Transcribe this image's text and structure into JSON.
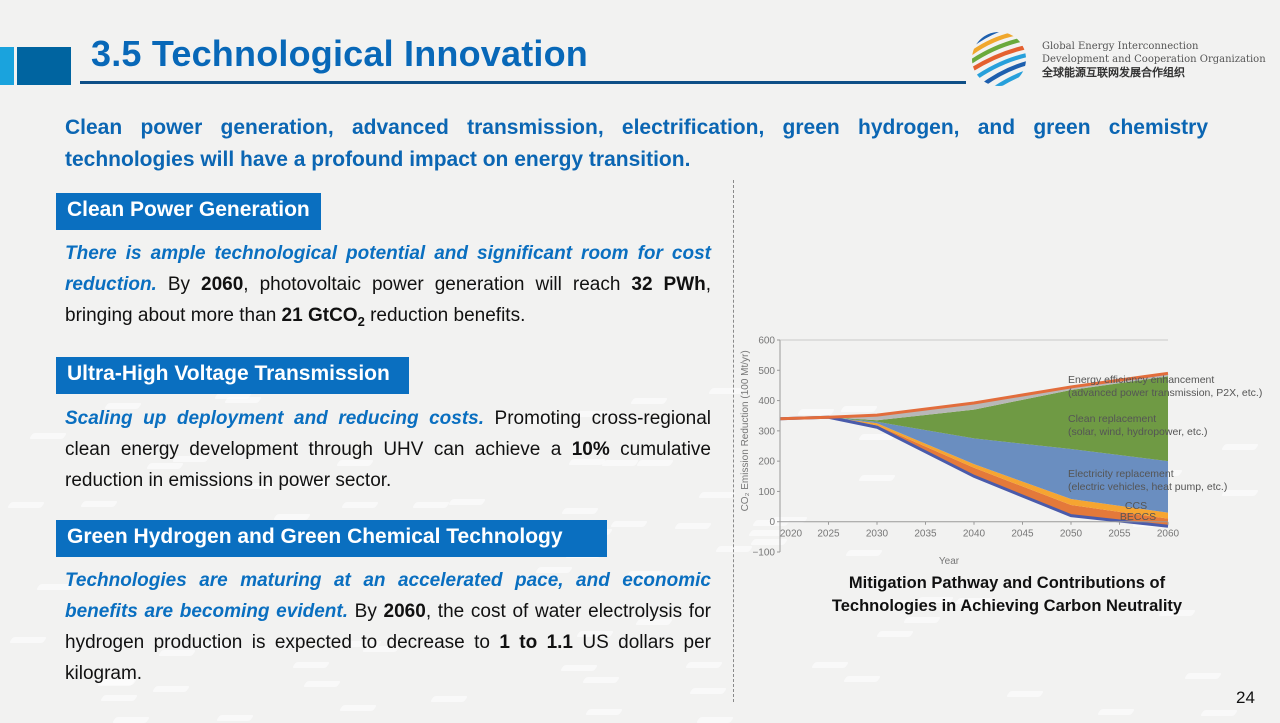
{
  "header": {
    "title": "3.5 Technological Innovation",
    "org_line1": "Global Energy Interconnection",
    "org_line2": "Development and Cooperation Organization",
    "org_line3": "全球能源互联网发展合作组织",
    "logo_icon": "globe-logo-icon"
  },
  "lead_text": "Clean power generation, advanced transmission, electrification, green hydrogen, and green chemistry technologies will have a profound impact on energy transition.",
  "sections": [
    {
      "heading": "Clean Power Generation",
      "highlight": "There is ample technological potential and significant room for cost reduction.",
      "t1": " By ",
      "b1": "2060",
      "t2": ", photovoltaic power generation will reach ",
      "b2": "32 PWh",
      "t3": ", bringing about more than ",
      "b3": "21 GtCO",
      "b3_sub": "2",
      "t4": " reduction benefits."
    },
    {
      "heading": "Ultra-High Voltage Transmission",
      "highlight": "Scaling up deployment and reducing costs.",
      "t1": " Promoting cross-regional clean energy development through UHV can achieve a ",
      "b1": "10%",
      "t2": " cumulative reduction in emissions in power sector."
    },
    {
      "heading": "Green Hydrogen and Green Chemical Technology",
      "highlight": "Technologies are maturing at an accelerated pace, and economic benefits are becoming evident.",
      "t1": " By ",
      "b1": "2060",
      "t2": ", the cost of water electrolysis for hydrogen production is expected to decrease to ",
      "b2": "1 to 1.1",
      "t3": " US dollars per kilogram."
    }
  ],
  "caption_line1": "Mitigation Pathway and  Contributions of",
  "caption_line2": "Technologies in Achieving Carbon Neutrality",
  "page_number": "24",
  "chart_data": {
    "type": "area",
    "title": "Mitigation Pathway and Contributions of Technologies in Achieving Carbon Neutrality",
    "xlabel": "Year",
    "ylabel": "CO₂ Emission Reduction (100 Mt/yr)",
    "x": [
      2020,
      2025,
      2030,
      2040,
      2050,
      2060
    ],
    "xticks": [
      2020,
      2025,
      2030,
      2035,
      2040,
      2045,
      2050,
      2055,
      2060
    ],
    "yticks": [
      -100,
      0,
      100,
      200,
      300,
      400,
      500,
      600
    ],
    "ylim": [
      -100,
      600
    ],
    "xlim": [
      2020,
      2060
    ],
    "residual_emissions": [
      340,
      345,
      312,
      150,
      20,
      -15
    ],
    "series": [
      {
        "name": "BECCS",
        "label": "BECCS",
        "color": "#e4793a",
        "top": [
          340,
          345,
          318,
          178,
          55,
          10
        ]
      },
      {
        "name": "CCS",
        "label": "CCS",
        "color": "#f6a531",
        "top": [
          340,
          345,
          325,
          190,
          75,
          30
        ]
      },
      {
        "name": "Electricity replacement",
        "label": "Electricity replacement",
        "sublabel": "(electric vehicles, heat pump, etc.)",
        "color": "#6a8ec0",
        "top": [
          340,
          345,
          330,
          275,
          240,
          200
        ]
      },
      {
        "name": "Clean replacement",
        "label": "Clean replacement",
        "sublabel": "(solar, wind, hydropower, etc.)",
        "color": "#6f9a44",
        "top": [
          340,
          345,
          335,
          370,
          435,
          480
        ]
      },
      {
        "name": "Energy efficiency enhancement",
        "label": "Energy efficiency enhancement",
        "sublabel": "(advanced power transmission, P2X, etc.)",
        "color": "#b8b8b8",
        "top": [
          340,
          345,
          352,
          392,
          445,
          490
        ]
      }
    ],
    "baseline_color": "#e26d3c",
    "residual_color": "#4a5bab",
    "grid": false,
    "legend": "inline-right"
  }
}
